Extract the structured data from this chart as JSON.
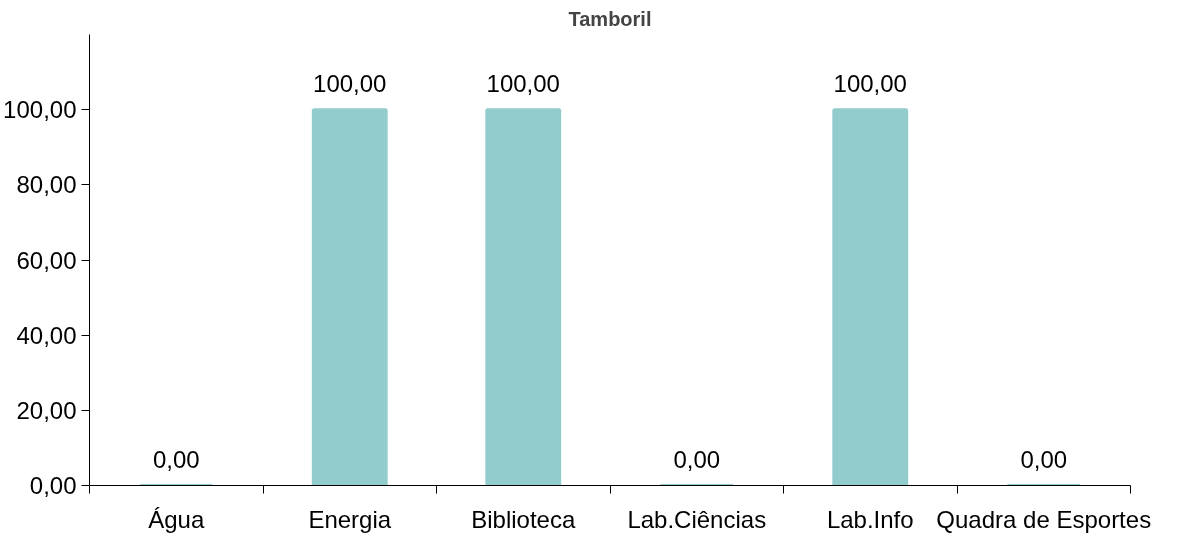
{
  "chart_data": {
    "type": "bar",
    "title": "Tamboril",
    "categories": [
      "Água",
      "Energia",
      "Biblioteca",
      "Lab.Ciências",
      "Lab.Info",
      "Quadra de Esportes"
    ],
    "values": [
      0,
      100,
      100,
      0,
      100,
      0
    ],
    "value_labels": [
      "0,00",
      "100,00",
      "100,00",
      "0,00",
      "100,00",
      "0,00"
    ],
    "color": "#93cccc",
    "ylim": [
      0,
      120
    ],
    "yticks": [
      {
        "value": 0,
        "label": "0,00"
      },
      {
        "value": 20,
        "label": "20,00"
      },
      {
        "value": 40,
        "label": "40,00"
      },
      {
        "value": 60,
        "label": "60,00"
      },
      {
        "value": 80,
        "label": "80,00"
      },
      {
        "value": 100,
        "label": "100,00"
      }
    ],
    "grid": false
  }
}
